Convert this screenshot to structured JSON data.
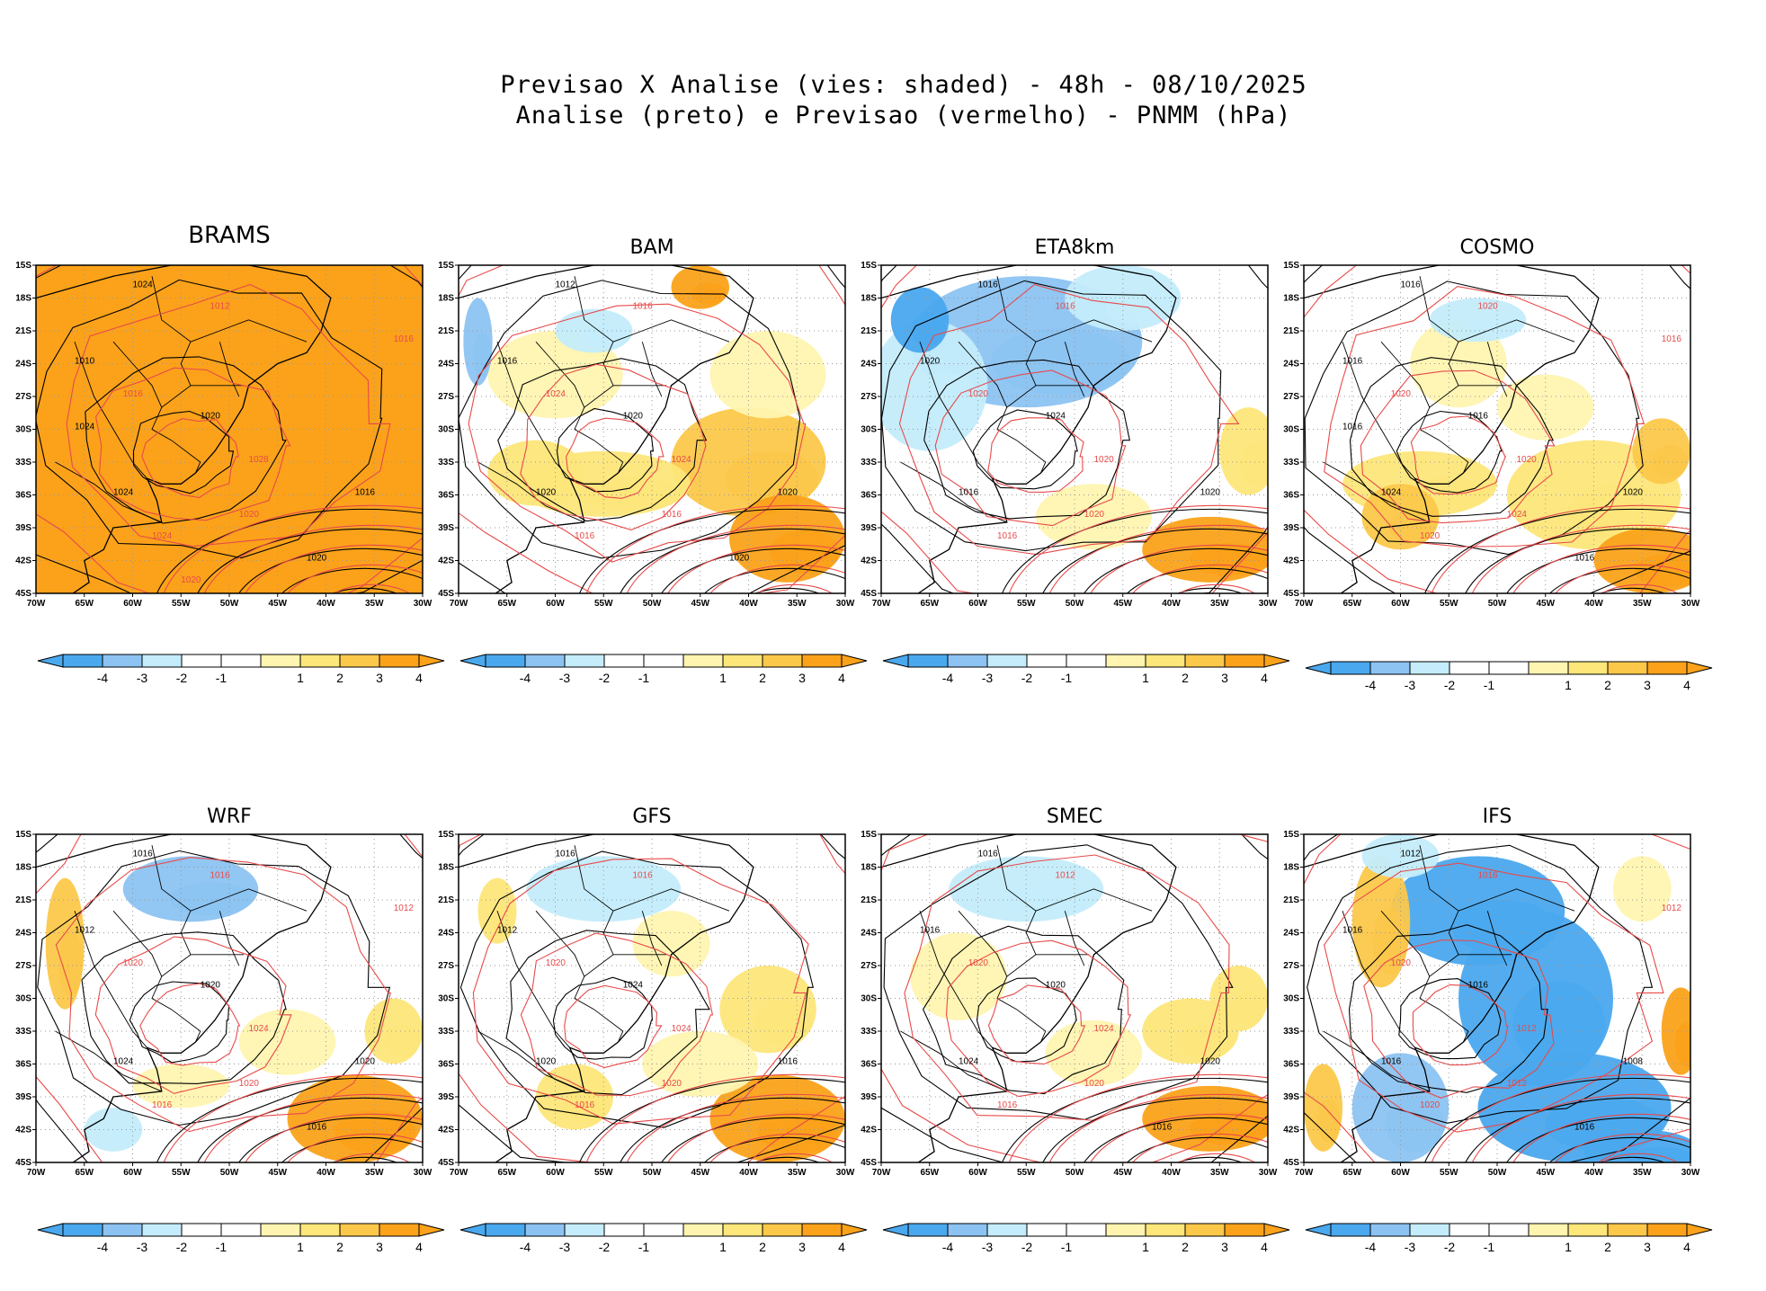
{
  "title": {
    "line1": "Previsao X Analise (vies: shaded) - 48h - 08/10/2025",
    "line2": "Analise (preto) e Previsao (vermelho) - PNMM (hPa)"
  },
  "colors": {
    "neg4": "#4aa8ee",
    "neg3": "#8cc3f2",
    "neg2": "#c4ecfb",
    "neg1": "#ffffff",
    "pos1": "#fff4b0",
    "pos2": "#fde67a",
    "pos3": "#fcc84a",
    "pos4": "#fba21a",
    "analysis_line": "#000000",
    "forecast_line": "#e84a4a"
  },
  "chart_data": {
    "type": "heatmap",
    "layout": "4x2 small multiples",
    "variable": "PNMM (hPa)",
    "bias_shading": "Previsao X Analise (vies)",
    "lead_time": "48h",
    "date": "08/10/2025",
    "lat_ticks": [
      "15S",
      "18S",
      "21S",
      "24S",
      "27S",
      "30S",
      "33S",
      "36S",
      "39S",
      "42S",
      "45S"
    ],
    "lon_ticks": [
      "70W",
      "65W",
      "60W",
      "55W",
      "50W",
      "45W",
      "40W",
      "35W",
      "30W"
    ],
    "lat_range": [
      -45,
      -15
    ],
    "lon_range": [
      -70,
      -30
    ],
    "colorbar": {
      "levels": [
        -4,
        -3,
        -2,
        -1,
        1,
        2,
        3,
        4
      ],
      "labels": [
        "-4",
        "-3",
        "-2",
        "-1",
        "1",
        "2",
        "3",
        "4"
      ]
    },
    "panels": [
      {
        "model": "BRAMS",
        "dominant_bias": 4,
        "contour_labels": [
          "1024",
          "1012",
          "1010",
          "1016",
          "1020",
          "1028",
          "1024",
          "1020",
          "1016",
          "1024",
          "1020",
          "1016",
          "1024",
          "1020"
        ]
      },
      {
        "model": "BAM",
        "dominant_bias": 1,
        "contour_labels": [
          "1012",
          "1016",
          "1016",
          "1024",
          "1020",
          "1024",
          "1020",
          "1016",
          "1020",
          "1016",
          "1020"
        ]
      },
      {
        "model": "ETA8km",
        "dominant_bias": -2,
        "contour_labels": [
          "1016",
          "1016",
          "1020",
          "1020",
          "1024",
          "1020",
          "1016",
          "1020",
          "1020",
          "1016"
        ]
      },
      {
        "model": "COSMO",
        "dominant_bias": 1,
        "contour_labels": [
          "1016",
          "1020",
          "1016",
          "1020",
          "1016",
          "1020",
          "1024",
          "1024",
          "1020",
          "1020",
          "1016",
          "1016",
          "1016"
        ]
      },
      {
        "model": "WRF",
        "dominant_bias": 1,
        "contour_labels": [
          "1016",
          "1016",
          "1012",
          "1020",
          "1020",
          "1024",
          "1024",
          "1020",
          "1020",
          "1016",
          "1016",
          "1012"
        ]
      },
      {
        "model": "GFS",
        "dominant_bias": 1,
        "contour_labels": [
          "1016",
          "1016",
          "1012",
          "1020",
          "1024",
          "1024",
          "1020",
          "1020",
          "1016",
          "1016"
        ]
      },
      {
        "model": "SMEC",
        "dominant_bias": 1,
        "contour_labels": [
          "1016",
          "1012",
          "1016",
          "1020",
          "1020",
          "1024",
          "1024",
          "1020",
          "1020",
          "1016",
          "1016"
        ]
      },
      {
        "model": "IFS",
        "dominant_bias": -3,
        "contour_labels": [
          "1012",
          "1016",
          "1016",
          "1020",
          "1016",
          "1012",
          "1016",
          "1012",
          "1008",
          "1020",
          "1016",
          "1012"
        ]
      }
    ]
  }
}
